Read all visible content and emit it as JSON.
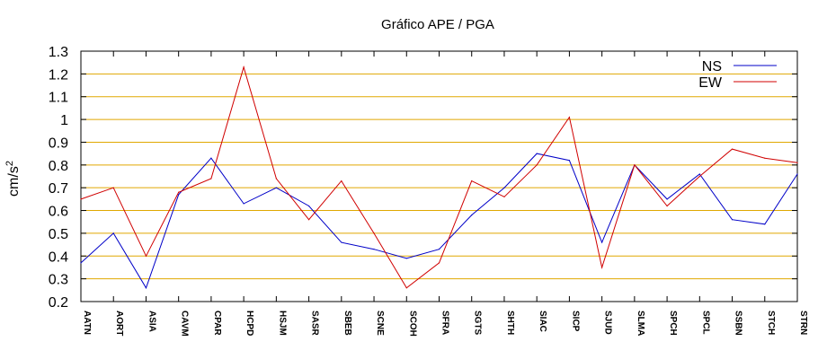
{
  "chart_data": {
    "type": "line",
    "title": "Gráfico  APE / PGA",
    "ylabel": "cm/s",
    "ylabel_sup": "2",
    "xlabel": "",
    "ylim": [
      0.2,
      1.3
    ],
    "yticks": [
      0.2,
      0.3,
      0.4,
      0.5,
      0.6,
      0.7,
      0.8,
      0.9,
      1,
      1.1,
      1.2,
      1.3
    ],
    "grid": "horizontal",
    "legend_position": "top-right",
    "categories": [
      "AATN",
      "AORT",
      "ASIA",
      "CAVM",
      "CPAR",
      "HCPD",
      "HSJM",
      "SASR",
      "SBEB",
      "SCNE",
      "SCOH",
      "SFRA",
      "SGTS",
      "SHTH",
      "SIAC",
      "SICP",
      "SJUD",
      "SLMA",
      "SPCH",
      "SPCL",
      "SSBN",
      "STCH",
      "STRN"
    ],
    "series": [
      {
        "name": "NS",
        "color": "#0000c8",
        "values": [
          0.37,
          0.5,
          0.26,
          0.67,
          0.83,
          0.63,
          0.7,
          0.62,
          0.46,
          0.43,
          0.39,
          0.43,
          0.58,
          0.7,
          0.85,
          0.82,
          0.46,
          0.8,
          0.65,
          0.76,
          0.56,
          0.54,
          0.76
        ]
      },
      {
        "name": "EW",
        "color": "#d00000",
        "values": [
          0.65,
          0.7,
          0.4,
          0.68,
          0.74,
          1.23,
          0.74,
          0.56,
          0.73,
          0.5,
          0.26,
          0.37,
          0.73,
          0.66,
          0.8,
          1.01,
          0.35,
          0.8,
          0.62,
          0.75,
          0.87,
          0.83,
          0.81
        ]
      }
    ],
    "gridline_color": "#e0a800"
  }
}
